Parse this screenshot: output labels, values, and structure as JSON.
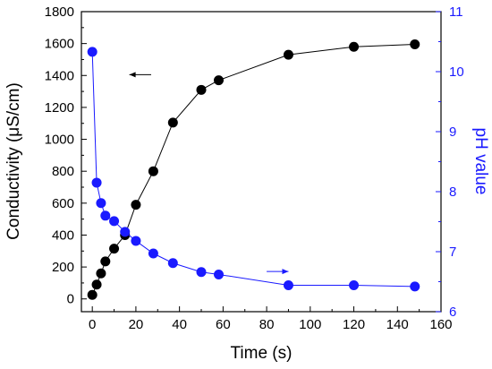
{
  "chart_data": {
    "type": "scatter",
    "x": {
      "label": "Time (s)",
      "range": [
        -5,
        160
      ],
      "ticks": [
        0,
        20,
        40,
        60,
        80,
        100,
        120,
        140,
        160
      ]
    },
    "y_left": {
      "label": "Conductivity (μS/cm)",
      "range": [
        -80,
        1800
      ],
      "ticks": [
        0,
        200,
        400,
        600,
        800,
        1000,
        1200,
        1400,
        1600,
        1800
      ],
      "color": "#000000"
    },
    "y_right": {
      "label": "pH value",
      "range": [
        6,
        11
      ],
      "ticks": [
        6,
        7,
        8,
        9,
        10,
        11
      ],
      "color": "#1a1aff"
    },
    "series": [
      {
        "axis": "left",
        "color": "#000000",
        "connected": true,
        "points": [
          [
            0,
            25
          ],
          [
            2,
            90
          ],
          [
            4,
            160
          ],
          [
            6,
            235
          ],
          [
            10,
            315
          ],
          [
            15,
            400
          ],
          [
            20,
            590
          ],
          [
            28,
            800
          ],
          [
            37,
            1105
          ],
          [
            50,
            1310
          ],
          [
            58,
            1370
          ],
          [
            90,
            1530
          ],
          [
            120,
            1580
          ],
          [
            148,
            1595
          ]
        ]
      },
      {
        "axis": "right",
        "color": "#1a1aff",
        "connected": true,
        "points": [
          [
            0,
            10.33
          ],
          [
            2,
            8.15
          ],
          [
            4,
            7.81
          ],
          [
            6,
            7.6
          ],
          [
            10,
            7.51
          ],
          [
            15,
            7.33
          ],
          [
            20,
            7.18
          ],
          [
            28,
            6.97
          ],
          [
            37,
            6.81
          ],
          [
            50,
            6.66
          ],
          [
            58,
            6.62
          ],
          [
            90,
            6.44
          ],
          [
            120,
            6.44
          ],
          [
            148,
            6.42
          ]
        ]
      }
    ],
    "arrows": [
      {
        "direction": "left",
        "axis": "left",
        "color": "#000000",
        "from": [
          27,
          1405
        ],
        "to": [
          17,
          1405
        ]
      },
      {
        "direction": "right",
        "axis": "right",
        "color": "#1a1aff",
        "from": [
          80,
          6.67
        ],
        "to": [
          90,
          6.67
        ]
      }
    ],
    "legend": "none",
    "grid": false
  }
}
